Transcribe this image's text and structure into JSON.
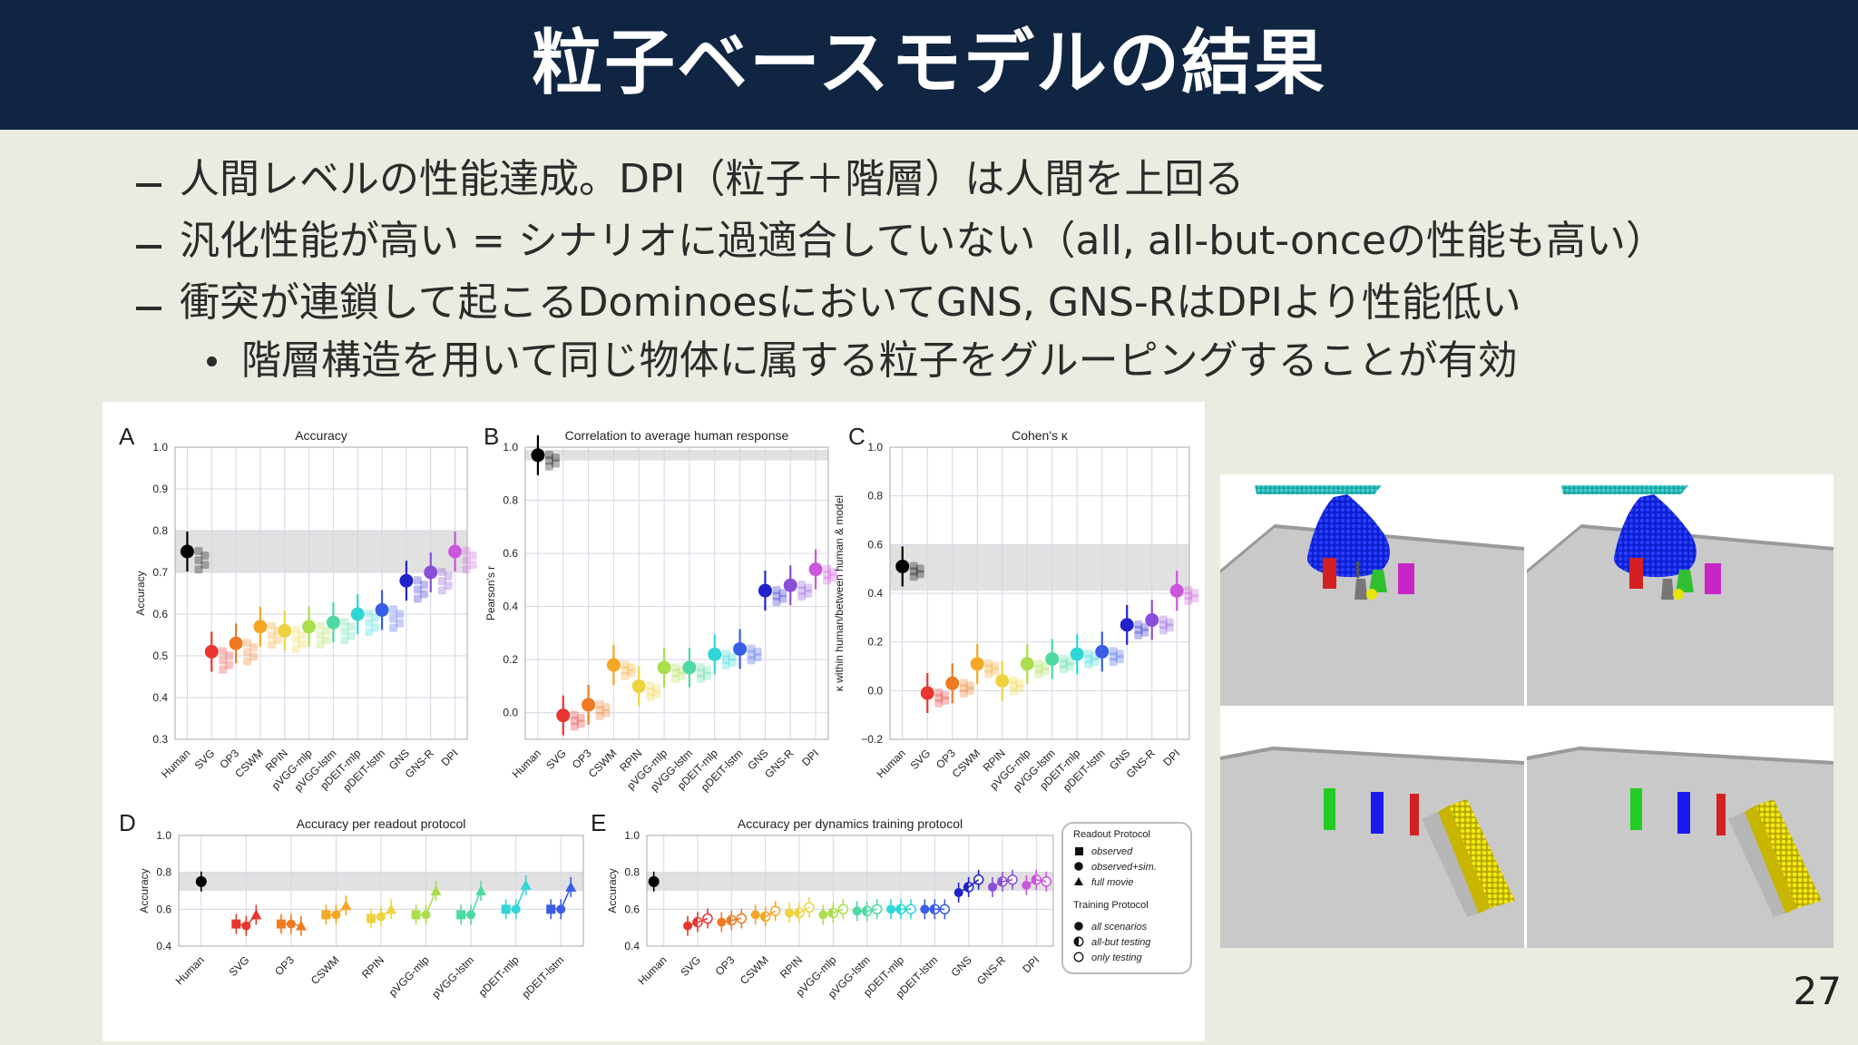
{
  "slide": {
    "title": "粒子ベースモデルの結果",
    "bullets": [
      "人間レベルの性能達成。DPI（粒子＋階層）は人間を上回る",
      "汎化性能が高い = シナリオに過適合していない（all, all-but-onceの性能も高い）",
      "衝突が連鎖して起こるDominoesにおいてGNS, GNS-RはDPIより性能低い"
    ],
    "sub_bullet": "階層構造を用いて同じ物体に属する粒子をグルーピングすることが有効",
    "page_number": "27"
  },
  "figure": {
    "panels": [
      {
        "letter": "A",
        "title": "Accuracy",
        "ylabel": "Accuracy",
        "yticks": [
          "1.0",
          "0.9",
          "0.8",
          "0.7",
          "0.6",
          "0.5",
          "0.4",
          "0.3"
        ]
      },
      {
        "letter": "B",
        "title": "Correlation to average human response",
        "ylabel": "Pearson's r",
        "yticks": [
          "1.0",
          "0.8",
          "0.6",
          "0.4",
          "0.2",
          "0.0"
        ]
      },
      {
        "letter": "C",
        "title": "Cohen's κ",
        "ylabel": "κ within human/between human & model",
        "yticks": [
          "1.0",
          "0.8",
          "0.6",
          "0.4",
          "0.2",
          "0.0",
          "−0.2"
        ]
      },
      {
        "letter": "D",
        "title": "Accuracy per readout protocol",
        "ylabel": "Accuracy",
        "yticks": [
          "1.0",
          "0.8",
          "0.6",
          "0.4"
        ]
      },
      {
        "letter": "E",
        "title": "Accuracy per dynamics training protocol",
        "ylabel": "Accuracy",
        "yticks": [
          "1.0",
          "0.8",
          "0.6",
          "0.4"
        ]
      }
    ],
    "models": [
      "Human",
      "SVG",
      "OP3",
      "CSWM",
      "RPIN",
      "pVGG-mlp",
      "pVGG-lstm",
      "pDEIT-mlp",
      "pDEIT-lstm",
      "GNS",
      "GNS-R",
      "DPI"
    ],
    "models_d": [
      "Human",
      "SVG",
      "OP3",
      "CSWM",
      "RPIN",
      "pVGG-mlp",
      "pVGG-lstm",
      "pDEIT-mlp",
      "pDEIT-lstm"
    ],
    "legend": {
      "readout_title": "Readout Protocol",
      "readout": [
        "observed",
        "observed+sim.",
        "full movie"
      ],
      "training_title": "Training Protocol",
      "training": [
        "all scenarios",
        "all-but testing",
        "only testing"
      ]
    },
    "colors": [
      "#000000",
      "#e8362e",
      "#ef7a22",
      "#f5a623",
      "#eed33f",
      "#aade4c",
      "#4fd9a2",
      "#2fd6d6",
      "#3a5de8",
      "#2222cc",
      "#8a4ed8",
      "#cc55dd",
      "#ee4fa0"
    ]
  },
  "chart_data": [
    {
      "type": "scatter",
      "title": "Accuracy",
      "ylabel": "Accuracy",
      "ylim": [
        0.3,
        1.0
      ],
      "categories": [
        "Human",
        "SVG",
        "OP3",
        "CSWM",
        "RPIN",
        "pVGG-mlp",
        "pVGG-lstm",
        "pDEIT-mlp",
        "pDEIT-lstm",
        "GNS",
        "GNS-R",
        "DPI"
      ],
      "values": [
        0.75,
        0.51,
        0.53,
        0.57,
        0.56,
        0.57,
        0.58,
        0.6,
        0.61,
        0.68,
        0.7,
        0.75
      ]
    },
    {
      "type": "scatter",
      "title": "Correlation to average human response",
      "ylabel": "Pearson's r",
      "ylim": [
        -0.1,
        1.0
      ],
      "categories": [
        "Human",
        "SVG",
        "OP3",
        "CSWM",
        "RPIN",
        "pVGG-mlp",
        "pVGG-lstm",
        "pDEIT-mlp",
        "pDEIT-lstm",
        "GNS",
        "GNS-R",
        "DPI"
      ],
      "values": [
        0.97,
        -0.01,
        0.03,
        0.18,
        0.1,
        0.17,
        0.17,
        0.22,
        0.24,
        0.46,
        0.48,
        0.54
      ]
    },
    {
      "type": "scatter",
      "title": "Cohen's κ",
      "ylabel": "κ within human/between human & model",
      "ylim": [
        -0.2,
        1.0
      ],
      "categories": [
        "Human",
        "SVG",
        "OP3",
        "CSWM",
        "RPIN",
        "pVGG-mlp",
        "pVGG-lstm",
        "pDEIT-mlp",
        "pDEIT-lstm",
        "GNS",
        "GNS-R",
        "DPI"
      ],
      "values": [
        0.51,
        -0.01,
        0.03,
        0.11,
        0.04,
        0.11,
        0.13,
        0.15,
        0.16,
        0.27,
        0.29,
        0.41
      ]
    },
    {
      "type": "line",
      "title": "Accuracy per readout protocol",
      "ylabel": "Accuracy",
      "ylim": [
        0.4,
        1.0
      ],
      "categories": [
        "Human",
        "SVG",
        "OP3",
        "CSWM",
        "RPIN",
        "pVGG-mlp",
        "pVGG-lstm",
        "pDEIT-mlp",
        "pDEIT-lstm"
      ],
      "series": [
        {
          "name": "observed",
          "values": [
            null,
            0.52,
            0.52,
            0.57,
            0.55,
            0.57,
            0.57,
            0.6,
            0.6
          ]
        },
        {
          "name": "observed+sim.",
          "values": [
            0.75,
            0.51,
            0.52,
            0.57,
            0.56,
            0.57,
            0.57,
            0.6,
            0.6
          ]
        },
        {
          "name": "full movie",
          "values": [
            null,
            0.57,
            0.51,
            0.62,
            0.6,
            0.7,
            0.7,
            0.73,
            0.72
          ]
        }
      ]
    },
    {
      "type": "line",
      "title": "Accuracy per dynamics training protocol",
      "ylabel": "Accuracy",
      "ylim": [
        0.4,
        1.0
      ],
      "categories": [
        "Human",
        "SVG",
        "OP3",
        "CSWM",
        "RPIN",
        "pVGG-mlp",
        "pVGG-lstm",
        "pDEIT-mlp",
        "pDEIT-lstm",
        "GNS",
        "GNS-R",
        "DPI"
      ],
      "series": [
        {
          "name": "all scenarios",
          "values": [
            0.75,
            0.51,
            0.53,
            0.57,
            0.58,
            0.57,
            0.59,
            0.6,
            0.6,
            0.69,
            0.72,
            0.73
          ]
        },
        {
          "name": "all-but testing",
          "values": [
            null,
            0.53,
            0.54,
            0.56,
            0.58,
            0.58,
            0.59,
            0.6,
            0.6,
            0.72,
            0.75,
            0.76
          ]
        },
        {
          "name": "only testing",
          "values": [
            null,
            0.55,
            0.55,
            0.59,
            0.61,
            0.6,
            0.6,
            0.6,
            0.6,
            0.76,
            0.76,
            0.75
          ]
        }
      ]
    }
  ]
}
